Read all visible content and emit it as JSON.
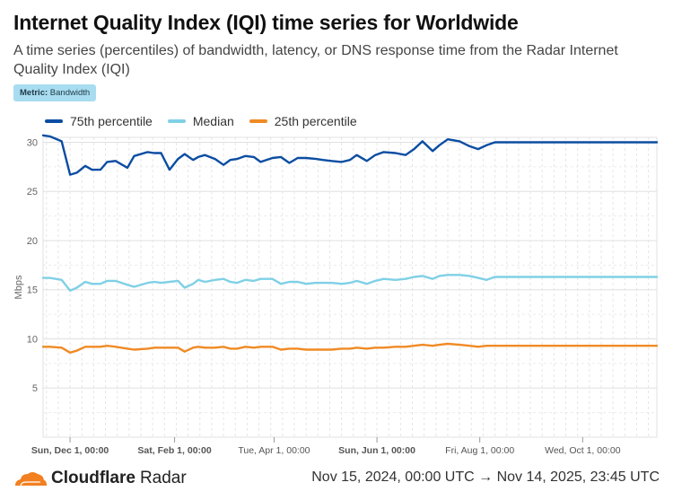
{
  "header": {
    "title": "Internet Quality Index (IQI) time series for Worldwide",
    "subtitle": "A time series (percentiles) of bandwidth, latency, or DNS response time from the Radar Internet Quality Index (IQI)",
    "metric_key": "Metric:",
    "metric_value": "Bandwidth"
  },
  "footer": {
    "brand": "Cloudflare",
    "brand_suffix": "Radar",
    "date_range": "Nov 15, 2024, 00:00 UTC → Nov 14, 2025, 23:45 UTC"
  },
  "colors": {
    "p75": "#0b4da2",
    "median": "#7fd0e6",
    "p25": "#f08a24",
    "grid": "#dddddd",
    "axis_text": "#666666"
  },
  "chart_data": {
    "type": "line",
    "ylabel": "Mbps",
    "ylim": [
      0,
      30.5
    ],
    "yticks": [
      5,
      10,
      15,
      20,
      25,
      30
    ],
    "x_start": "Nov 15, 2024",
    "x_end": "Nov 14, 2025",
    "x_ticks": [
      {
        "label": "Sun, Dec 1, 00:00",
        "day": 16,
        "bold": true
      },
      {
        "label": "Sat, Feb 1, 00:00",
        "day": 78,
        "bold": true
      },
      {
        "label": "Tue, Apr 1, 00:00",
        "day": 137,
        "bold": false
      },
      {
        "label": "Sun, Jun 1, 00:00",
        "day": 198,
        "bold": true
      },
      {
        "label": "Fri, Aug 1, 00:00",
        "day": 259,
        "bold": false
      },
      {
        "label": "Wed, Oct 1, 00:00",
        "day": 320,
        "bold": false
      }
    ],
    "x_days": [
      0,
      4,
      11,
      16,
      20,
      25,
      29,
      34,
      38,
      43,
      50,
      54,
      62,
      66,
      70,
      75,
      80,
      84,
      89,
      92,
      96,
      102,
      107,
      111,
      115,
      120,
      125,
      129,
      136,
      141,
      146,
      151,
      156,
      162,
      166,
      171,
      177,
      182,
      186,
      192,
      197,
      202,
      209,
      215,
      220,
      225,
      231,
      235,
      240,
      247,
      253,
      258,
      263,
      268,
      274,
      279,
      284,
      289,
      294,
      300,
      305,
      311,
      315,
      320,
      325,
      330,
      336,
      341,
      346,
      352,
      357,
      364
    ],
    "series": [
      {
        "name": "75th percentile",
        "color": "#0b4da2",
        "values": [
          30.7,
          30.6,
          30.1,
          26.7,
          26.9,
          27.6,
          27.2,
          27.2,
          28.0,
          28.1,
          27.4,
          28.6,
          29.0,
          28.9,
          28.9,
          27.2,
          28.3,
          28.8,
          28.2,
          28.5,
          28.7,
          28.3,
          27.7,
          28.2,
          28.3,
          28.6,
          28.5,
          28.0,
          28.4,
          28.5,
          27.9,
          28.4,
          28.4,
          28.3,
          28.2,
          28.1,
          28.0,
          28.2,
          28.7,
          28.1,
          28.7,
          29.0,
          28.9,
          28.7,
          29.3,
          30.1,
          29.1,
          29.7,
          30.3,
          30.1,
          29.6,
          29.3,
          29.7,
          30.0,
          30.0,
          30.0,
          30.0,
          30.0,
          30.0,
          30.0,
          30.0,
          30.0,
          30.0,
          30.0,
          30.0,
          30.0,
          30.0,
          30.0,
          30.0,
          30.0,
          30.0,
          30.0
        ]
      },
      {
        "name": "Median",
        "color": "#7fd0e6",
        "values": [
          16.2,
          16.2,
          16.0,
          14.9,
          15.2,
          15.8,
          15.6,
          15.6,
          15.9,
          15.9,
          15.5,
          15.3,
          15.7,
          15.8,
          15.7,
          15.8,
          15.9,
          15.2,
          15.6,
          16.0,
          15.8,
          16.0,
          16.1,
          15.8,
          15.7,
          16.0,
          15.9,
          16.1,
          16.1,
          15.6,
          15.8,
          15.8,
          15.6,
          15.7,
          15.7,
          15.7,
          15.6,
          15.7,
          15.9,
          15.6,
          15.9,
          16.1,
          16.0,
          16.1,
          16.3,
          16.4,
          16.1,
          16.4,
          16.5,
          16.5,
          16.4,
          16.2,
          16.0,
          16.3,
          16.3,
          16.3,
          16.3,
          16.3,
          16.3,
          16.3,
          16.3,
          16.3,
          16.3,
          16.3,
          16.3,
          16.3,
          16.3,
          16.3,
          16.3,
          16.3,
          16.3,
          16.3
        ]
      },
      {
        "name": "25th percentile",
        "color": "#f08a24",
        "values": [
          9.2,
          9.2,
          9.1,
          8.6,
          8.8,
          9.2,
          9.2,
          9.2,
          9.3,
          9.2,
          9.0,
          8.9,
          9.0,
          9.1,
          9.1,
          9.1,
          9.1,
          8.7,
          9.1,
          9.2,
          9.1,
          9.1,
          9.2,
          9.0,
          9.0,
          9.2,
          9.1,
          9.2,
          9.2,
          8.9,
          9.0,
          9.0,
          8.9,
          8.9,
          8.9,
          8.9,
          9.0,
          9.0,
          9.1,
          9.0,
          9.1,
          9.1,
          9.2,
          9.2,
          9.3,
          9.4,
          9.3,
          9.4,
          9.5,
          9.4,
          9.3,
          9.2,
          9.3,
          9.3,
          9.3,
          9.3,
          9.3,
          9.3,
          9.3,
          9.3,
          9.3,
          9.3,
          9.3,
          9.3,
          9.3,
          9.3,
          9.3,
          9.3,
          9.3,
          9.3,
          9.3,
          9.3
        ]
      }
    ]
  }
}
